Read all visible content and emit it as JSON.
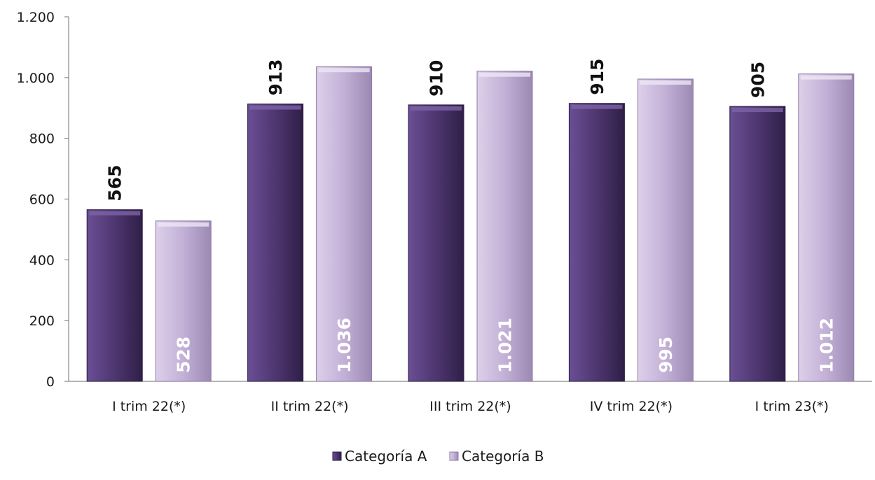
{
  "chart_data": {
    "type": "bar",
    "categories": [
      "I trim 22(*)",
      "II trim 22(*)",
      "III trim 22(*)",
      "IV trim 22(*)",
      "I trim 23(*)"
    ],
    "series": [
      {
        "name": "Categoría A",
        "values": [
          565,
          913,
          910,
          915,
          905
        ],
        "labels": [
          "565",
          "913",
          "910",
          "915",
          "905"
        ],
        "color": "#4e3670"
      },
      {
        "name": "Categoría B",
        "values": [
          528,
          1036,
          1021,
          995,
          1012
        ],
        "labels": [
          "528",
          "1.036",
          "1.021",
          "995",
          "1.012"
        ],
        "color": "#c4b3d6"
      }
    ],
    "yticks": [
      0,
      200,
      400,
      600,
      800,
      1000,
      1200
    ],
    "ytick_labels": [
      "0",
      "200",
      "400",
      "600",
      "800",
      "1.000",
      "1.200"
    ],
    "ylim": [
      0,
      1200
    ],
    "grid": false,
    "legend": "bottom"
  }
}
